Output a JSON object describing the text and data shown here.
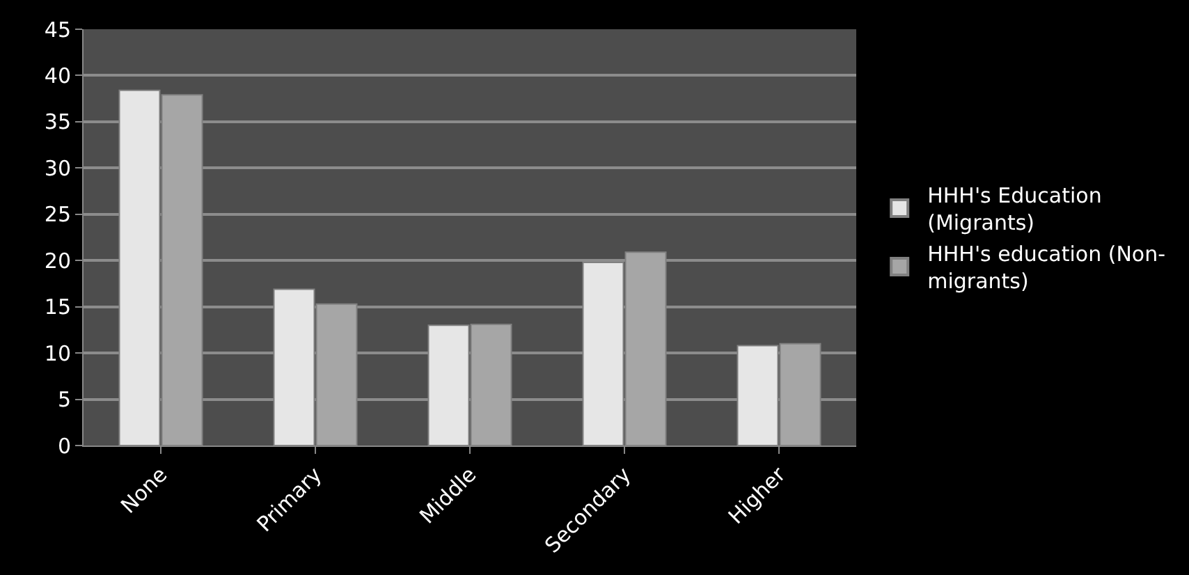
{
  "chart_data": {
    "type": "bar",
    "categories": [
      "None",
      "Primary",
      "Middle",
      "Secondary",
      "Higher"
    ],
    "series": [
      {
        "name": "HHH's Education (Migrants)",
        "color": "#e6e6e6",
        "values": [
          38.4,
          16.9,
          13.0,
          19.8,
          10.8
        ]
      },
      {
        "name": "HHH's education (Non-migrants)",
        "color": "#a6a6a6",
        "values": [
          37.9,
          15.3,
          13.1,
          20.9,
          11.0
        ]
      }
    ],
    "ylim": [
      0,
      45
    ],
    "yticks": [
      0,
      5,
      10,
      15,
      20,
      25,
      30,
      35,
      40,
      45
    ],
    "grid": "y",
    "legend": "right"
  }
}
